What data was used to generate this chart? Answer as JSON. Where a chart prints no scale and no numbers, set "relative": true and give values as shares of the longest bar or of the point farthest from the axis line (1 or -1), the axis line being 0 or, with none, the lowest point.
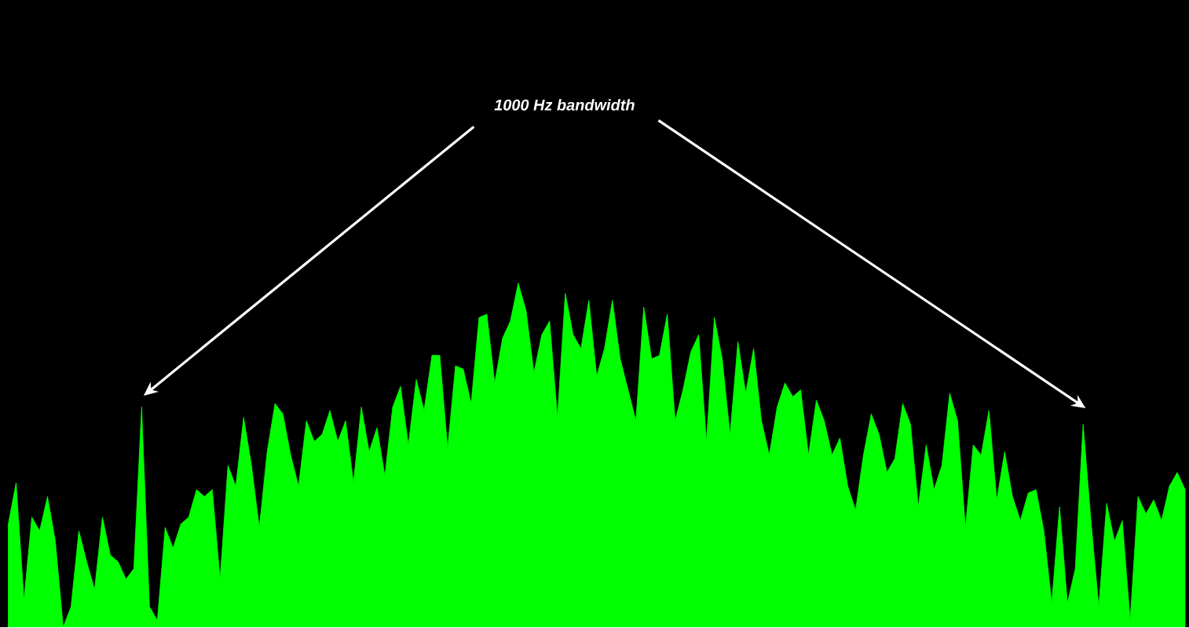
{
  "chart_data": {
    "type": "area",
    "relative": true,
    "color": "#00ff00",
    "annotations": [
      "1000 Hz bandwidth"
    ],
    "categories": [
      null,
      null,
      null,
      null,
      null,
      null,
      null,
      null,
      null,
      null,
      null,
      null,
      null,
      null,
      null,
      null,
      null,
      null,
      null,
      null,
      null,
      null,
      null,
      null,
      null,
      null,
      null,
      null,
      null,
      null,
      null,
      null,
      null,
      null,
      null,
      null,
      null,
      null,
      null,
      null,
      null,
      null,
      null,
      null,
      null,
      null,
      null,
      null,
      null,
      null,
      null,
      null,
      null,
      null,
      null,
      null,
      null,
      null,
      null,
      null,
      null,
      null,
      null,
      null,
      null,
      null,
      null,
      null,
      null,
      null,
      null,
      null,
      null,
      null,
      null,
      null,
      null,
      null,
      null,
      null,
      null,
      null,
      null,
      null,
      null,
      null,
      null,
      null,
      null,
      null,
      null,
      null,
      null,
      null,
      null,
      null,
      null,
      null,
      null,
      null,
      null,
      null,
      null,
      null,
      null,
      null,
      null,
      null,
      null,
      null,
      null,
      null,
      null,
      null,
      null,
      null,
      null,
      null,
      null,
      null,
      null,
      null,
      null,
      null,
      null,
      null,
      null,
      null,
      null,
      null,
      null,
      null,
      null,
      null,
      null,
      null,
      null,
      null,
      null,
      null,
      null,
      null,
      null,
      null,
      null,
      null,
      null,
      null,
      null,
      null,
      null
    ],
    "values": [
      0.3,
      0.42,
      0.08,
      0.32,
      0.28,
      0.38,
      0.25,
      0.0,
      0.06,
      0.28,
      0.19,
      0.11,
      0.32,
      0.21,
      0.19,
      0.14,
      0.17,
      0.64,
      0.06,
      0.02,
      0.29,
      0.23,
      0.3,
      0.32,
      0.4,
      0.38,
      0.4,
      0.14,
      0.47,
      0.41,
      0.61,
      0.47,
      0.29,
      0.51,
      0.65,
      0.62,
      0.5,
      0.41,
      0.6,
      0.54,
      0.56,
      0.63,
      0.54,
      0.6,
      0.42,
      0.64,
      0.51,
      0.58,
      0.44,
      0.64,
      0.7,
      0.53,
      0.72,
      0.63,
      0.79,
      0.79,
      0.52,
      0.76,
      0.75,
      0.65,
      0.9,
      0.91,
      0.71,
      0.84,
      0.89,
      1.0,
      0.92,
      0.74,
      0.85,
      0.89,
      0.61,
      0.97,
      0.85,
      0.81,
      0.95,
      0.73,
      0.81,
      0.95,
      0.78,
      0.69,
      0.6,
      0.93,
      0.78,
      0.79,
      0.91,
      0.6,
      0.69,
      0.8,
      0.85,
      0.54,
      0.9,
      0.78,
      0.56,
      0.83,
      0.68,
      0.81,
      0.6,
      0.5,
      0.64,
      0.71,
      0.67,
      0.69,
      0.5,
      0.66,
      0.6,
      0.5,
      0.55,
      0.41,
      0.34,
      0.5,
      0.62,
      0.56,
      0.45,
      0.49,
      0.65,
      0.59,
      0.35,
      0.53,
      0.4,
      0.47,
      0.68,
      0.6,
      0.29,
      0.53,
      0.5,
      0.63,
      0.37,
      0.51,
      0.38,
      0.31,
      0.39,
      0.4,
      0.28,
      0.07,
      0.35,
      0.07,
      0.17,
      0.59,
      0.31,
      0.06,
      0.36,
      0.25,
      0.31,
      0.02,
      0.38,
      0.33,
      0.37,
      0.31,
      0.41,
      0.45,
      0.4
    ]
  }
}
